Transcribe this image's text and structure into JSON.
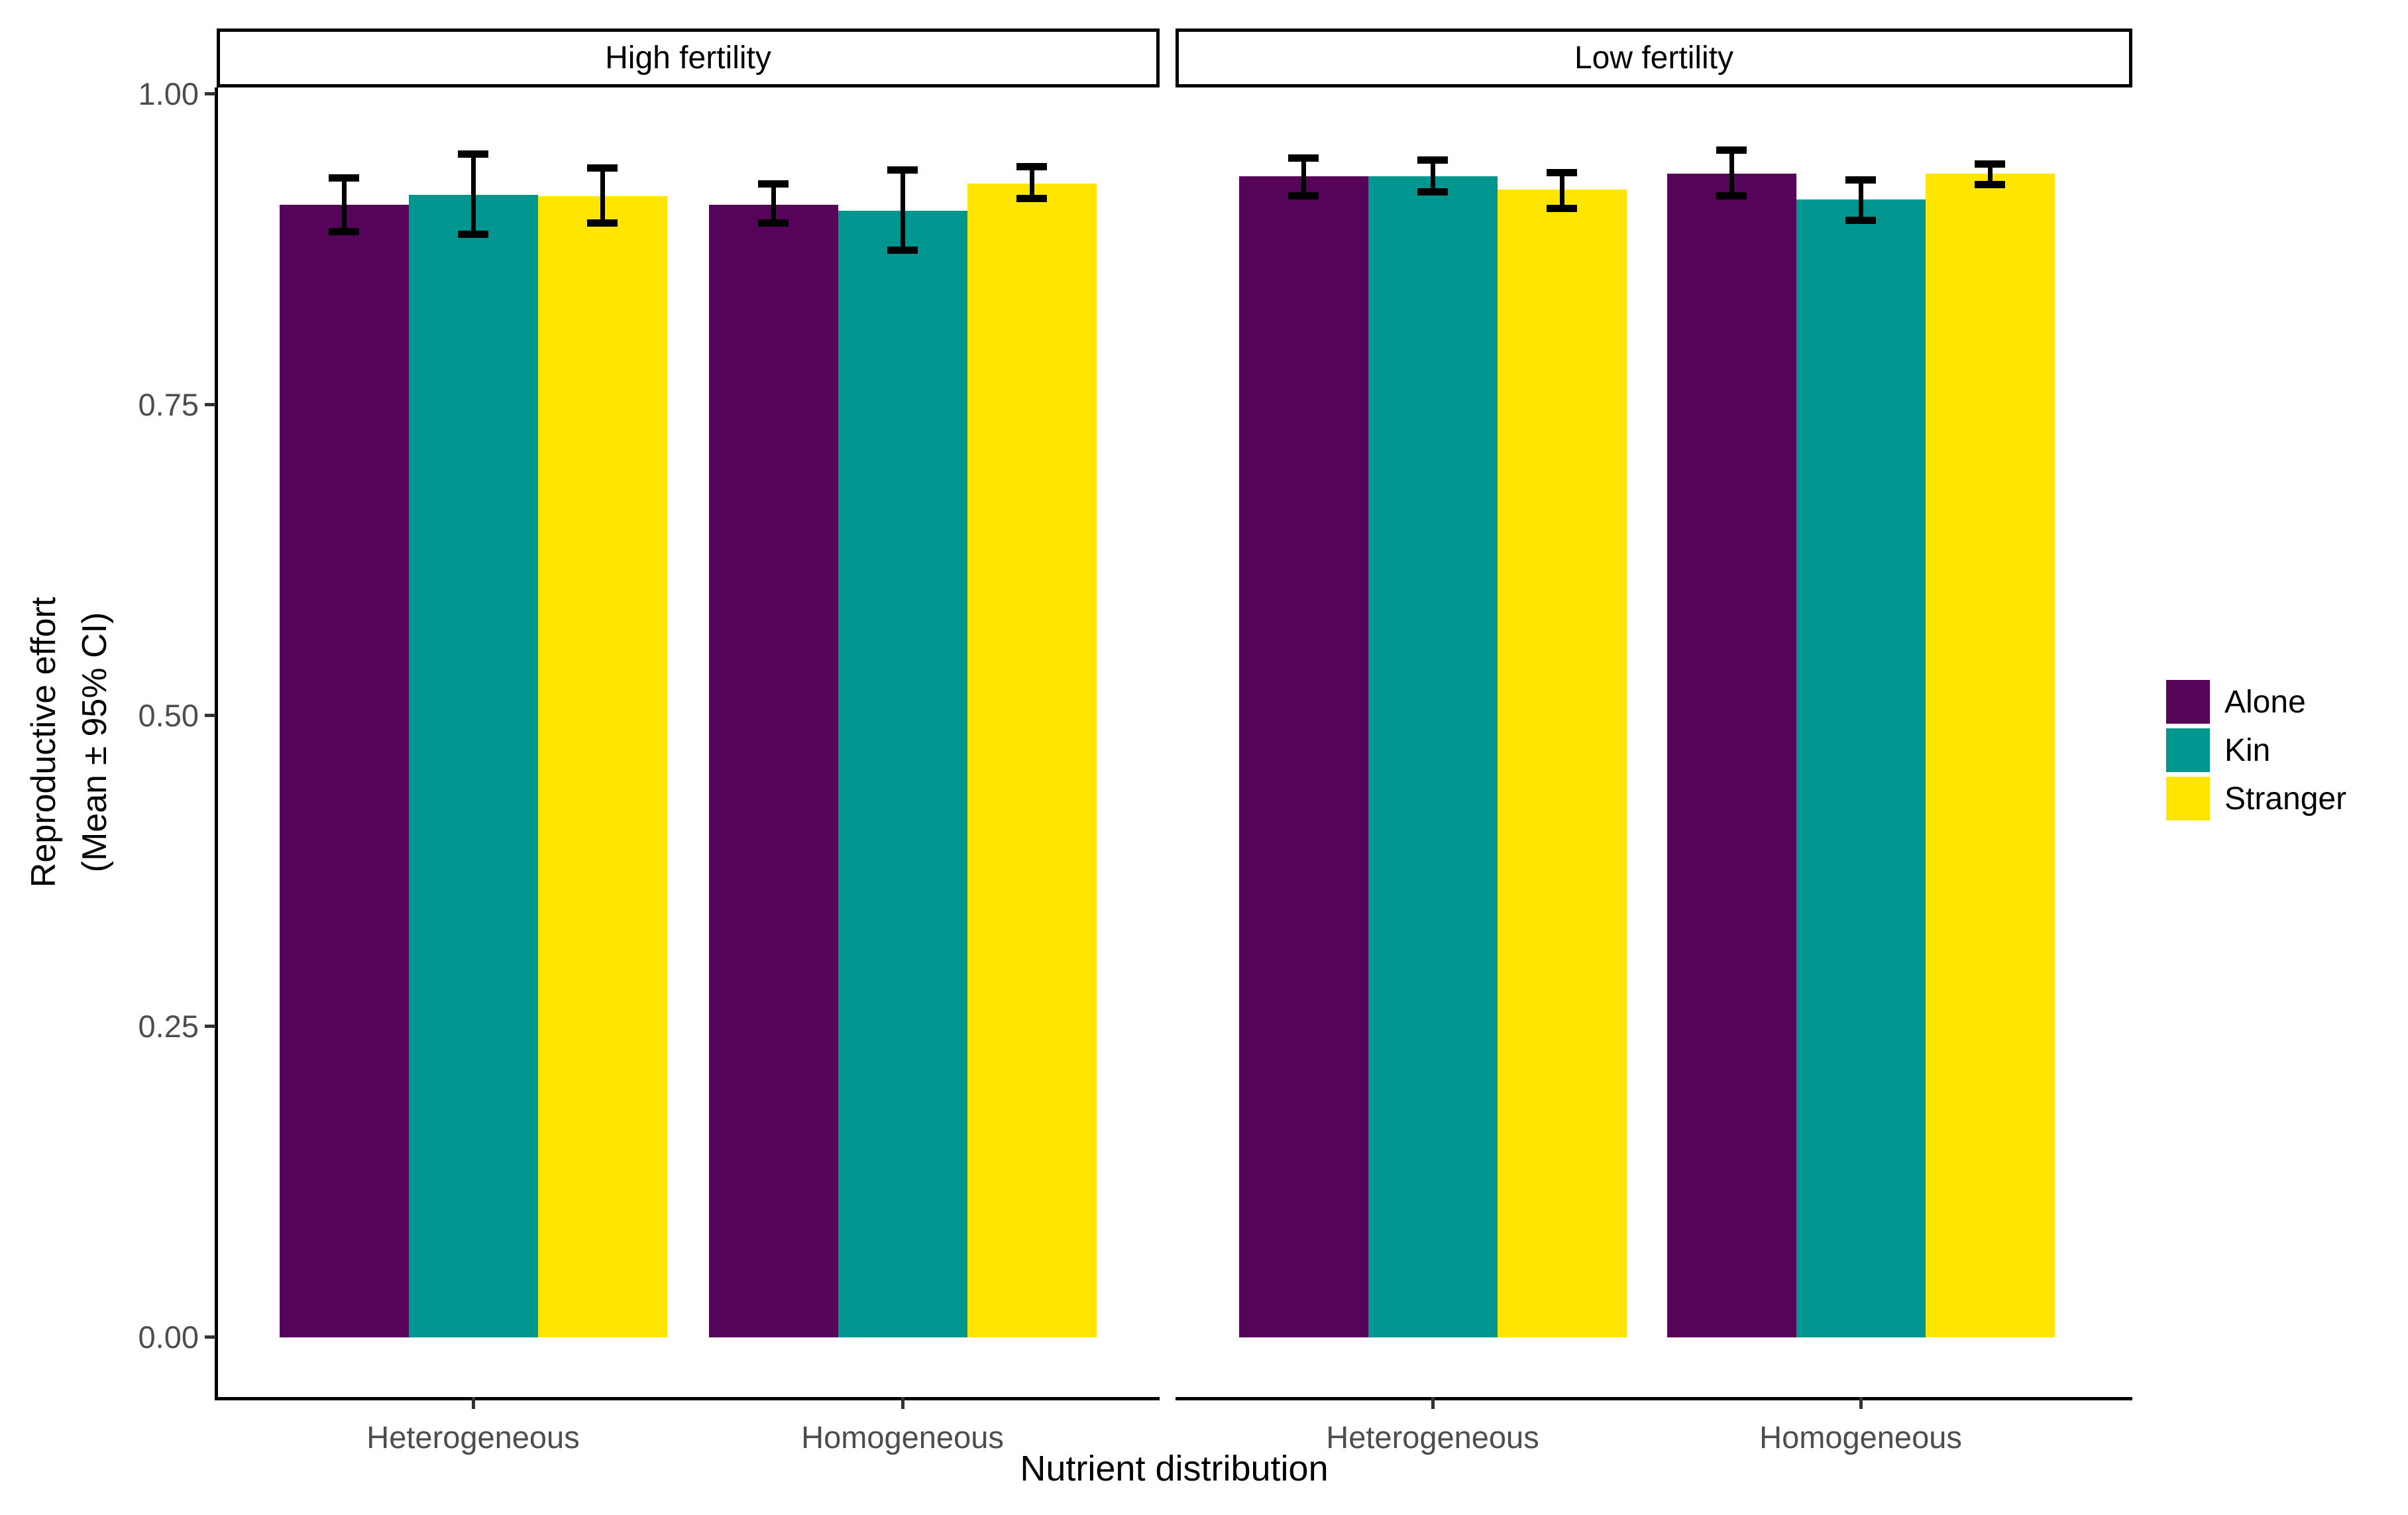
{
  "chart_data": {
    "type": "bar",
    "title": "",
    "xlabel": "Nutrient distribution",
    "ylabel_line1": "Reproductive effort",
    "ylabel_line2": "(Mean ± 95% CI)",
    "ylim": [
      0.0,
      1.0
    ],
    "grid": "off",
    "legend_position": "right-center",
    "yticks": [
      {
        "label": "1.00",
        "value": 1.0
      },
      {
        "label": "0.75",
        "value": 0.75
      },
      {
        "label": "0.50",
        "value": 0.5
      },
      {
        "label": "0.25",
        "value": 0.25
      },
      {
        "label": "0.00",
        "value": 0.0
      }
    ],
    "series": [
      {
        "name": "Alone",
        "color": "#550459"
      },
      {
        "name": "Kin",
        "color": "#009690"
      },
      {
        "name": "Stranger",
        "color": "#FEE600"
      }
    ],
    "facets": [
      {
        "label": "High fertility",
        "groups": [
          {
            "category": "Heterogeneous",
            "bars": [
              {
                "series": "Alone",
                "mean": 0.911,
                "ci_low": 0.889,
                "ci_high": 0.933
              },
              {
                "series": "Kin",
                "mean": 0.919,
                "ci_low": 0.887,
                "ci_high": 0.952
              },
              {
                "series": "Stranger",
                "mean": 0.918,
                "ci_low": 0.896,
                "ci_high": 0.941
              }
            ]
          },
          {
            "category": "Homogeneous",
            "bars": [
              {
                "series": "Alone",
                "mean": 0.911,
                "ci_low": 0.896,
                "ci_high": 0.928
              },
              {
                "series": "Kin",
                "mean": 0.906,
                "ci_low": 0.874,
                "ci_high": 0.939
              },
              {
                "series": "Stranger",
                "mean": 0.928,
                "ci_low": 0.916,
                "ci_high": 0.942
              }
            ]
          }
        ]
      },
      {
        "label": "Low fertility",
        "groups": [
          {
            "category": "Heterogeneous",
            "bars": [
              {
                "series": "Alone",
                "mean": 0.934,
                "ci_low": 0.918,
                "ci_high": 0.949
              },
              {
                "series": "Kin",
                "mean": 0.934,
                "ci_low": 0.921,
                "ci_high": 0.947
              },
              {
                "series": "Stranger",
                "mean": 0.923,
                "ci_low": 0.908,
                "ci_high": 0.937
              }
            ]
          },
          {
            "category": "Homogeneous",
            "bars": [
              {
                "series": "Alone",
                "mean": 0.936,
                "ci_low": 0.918,
                "ci_high": 0.955
              },
              {
                "series": "Kin",
                "mean": 0.915,
                "ci_low": 0.898,
                "ci_high": 0.931
              },
              {
                "series": "Stranger",
                "mean": 0.936,
                "ci_low": 0.927,
                "ci_high": 0.944
              }
            ]
          }
        ]
      }
    ]
  },
  "legend": {
    "items": [
      "Alone",
      "Kin",
      "Stranger"
    ]
  }
}
